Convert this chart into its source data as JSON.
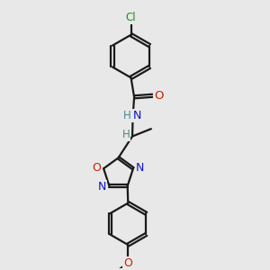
{
  "bg_color": "#e8e8e8",
  "bond_color": "#1a1a1a",
  "bond_width": 1.6,
  "atom_colors": {
    "C": "#1a1a1a",
    "N": "#1010cc",
    "O": "#cc2000",
    "Cl": "#228b22",
    "H": "#4a8888"
  },
  "figsize": [
    3.0,
    3.0
  ],
  "dpi": 100
}
